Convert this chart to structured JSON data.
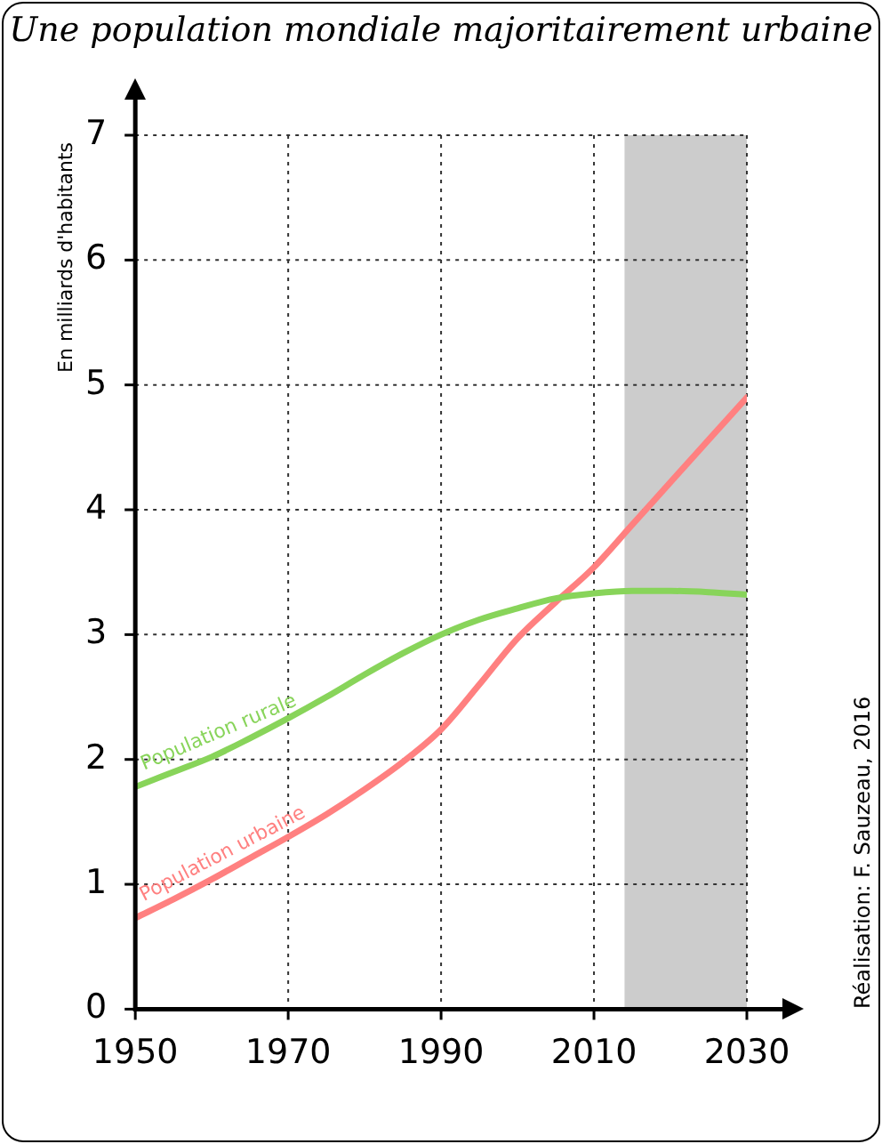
{
  "chart_data": {
    "type": "line",
    "title": "Une population mondiale majoritairement urbaine",
    "ylabel": "En milliards d'habitants",
    "x": [
      1950,
      1955,
      1960,
      1965,
      1970,
      1975,
      1980,
      1985,
      1990,
      1995,
      2000,
      2005,
      2010,
      2015,
      2020,
      2025,
      2030
    ],
    "series": [
      {
        "name": "Population rurale",
        "color": "#88d45a",
        "values": [
          1.78,
          1.9,
          2.02,
          2.17,
          2.33,
          2.5,
          2.68,
          2.85,
          3.0,
          3.12,
          3.21,
          3.29,
          3.33,
          3.35,
          3.35,
          3.34,
          3.32
        ]
      },
      {
        "name": "Population urbaine",
        "color": "#ff8080",
        "values": [
          0.73,
          0.88,
          1.04,
          1.21,
          1.38,
          1.56,
          1.76,
          1.98,
          2.24,
          2.6,
          2.97,
          3.26,
          3.54,
          3.88,
          4.22,
          4.56,
          4.9
        ]
      }
    ],
    "xlim": [
      1950,
      2030
    ],
    "xticks": [
      1950,
      1970,
      1990,
      2010,
      2030
    ],
    "ylim": [
      0,
      7
    ],
    "yticks": [
      0,
      1,
      2,
      3,
      4,
      5,
      6,
      7
    ],
    "bands": [
      {
        "axis": "x",
        "from": 2014,
        "to": 2030,
        "color": "#cccccc"
      }
    ],
    "annotations": [
      "Réalisation: F. Sauzeau, 2016"
    ],
    "grid": true,
    "legend": false,
    "marker": "none",
    "line_style": "solid"
  }
}
